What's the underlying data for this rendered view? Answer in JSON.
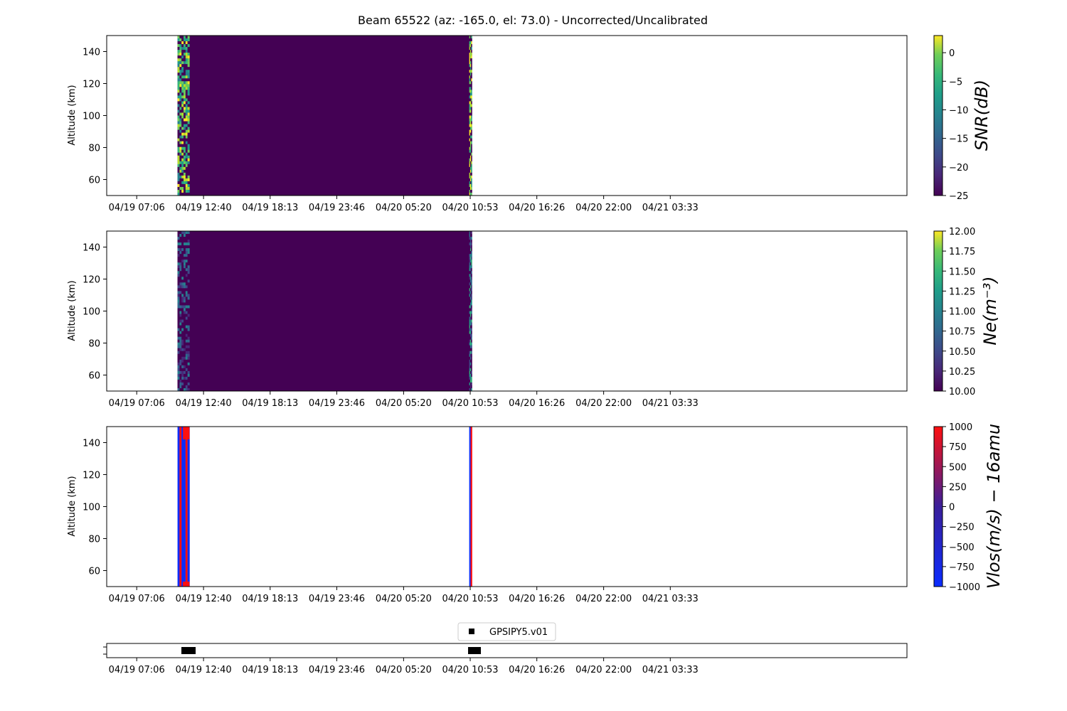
{
  "title": "Beam 65522 (az: -165.0, el: 73.0) - Uncorrected/Uncalibrated",
  "time_ticks": [
    "04/19 07:06",
    "04/19 12:40",
    "04/19 18:13",
    "04/19 23:46",
    "04/20 05:20",
    "04/20 10:53",
    "04/20 16:26",
    "04/20 22:00",
    "04/21 03:33"
  ],
  "chart_data": [
    {
      "type": "heatmap",
      "ylabel": "Altitude (km)",
      "colorbar_label": "SNR(dB)",
      "colormap": "viridis",
      "ylim": [
        50,
        150
      ],
      "yticks": [
        "60",
        "80",
        "100",
        "120",
        "140"
      ],
      "clim": [
        -25,
        3
      ],
      "cticks": [
        "0",
        "−5",
        "−10",
        "−15",
        "−20",
        "−25"
      ],
      "segments": [
        {
          "start": "04/19 10:30",
          "end": "04/20 11:02",
          "value": -25
        },
        {
          "start": "04/19 10:30",
          "end": "04/19 11:30",
          "value": -5,
          "pattern": "noisy"
        },
        {
          "start": "04/20 10:48",
          "end": "04/20 11:02",
          "value": -2,
          "pattern": "noisy"
        }
      ]
    },
    {
      "type": "heatmap",
      "ylabel": "Altitude (km)",
      "colorbar_label": "Ne(m⁻³)",
      "colormap": "viridis",
      "ylim": [
        50,
        150
      ],
      "yticks": [
        "60",
        "80",
        "100",
        "120",
        "140"
      ],
      "clim": [
        10,
        12
      ],
      "cticks": [
        "12.00",
        "11.75",
        "11.50",
        "11.25",
        "11.00",
        "10.75",
        "10.50",
        "10.25",
        "10.00"
      ],
      "segments": [
        {
          "start": "04/19 10:30",
          "end": "04/20 11:02",
          "value": 10
        },
        {
          "start": "04/19 10:30",
          "end": "04/19 11:30",
          "value": 10.4,
          "pattern": "noisy"
        },
        {
          "start": "04/20 10:48",
          "end": "04/20 11:02",
          "value": 10.8,
          "pattern": "noisy"
        }
      ]
    },
    {
      "type": "heatmap",
      "ylabel": "Altitude (km)",
      "colorbar_label": "Vlos(m/s) − 16amu",
      "colormap": "blue-red",
      "ylim": [
        50,
        150
      ],
      "yticks": [
        "60",
        "80",
        "100",
        "120",
        "140"
      ],
      "clim": [
        -1000,
        1000
      ],
      "cticks": [
        "1000",
        "750",
        "500",
        "250",
        "0",
        "−250",
        "−500",
        "−750",
        "−1000"
      ],
      "segments": [
        {
          "start": "04/19 10:30",
          "end": "04/19 11:30",
          "value": -1000
        },
        {
          "start": "04/20 10:48",
          "end": "04/20 11:02",
          "value": -1000
        }
      ]
    },
    {
      "type": "scatter",
      "legend": "GPSIPY5.v01",
      "marker": "square",
      "color": "#000000",
      "spans": [
        {
          "start": "04/19 11:00",
          "end": "04/19 11:50"
        },
        {
          "start": "04/20 10:53",
          "end": "04/20 11:40"
        }
      ]
    }
  ]
}
